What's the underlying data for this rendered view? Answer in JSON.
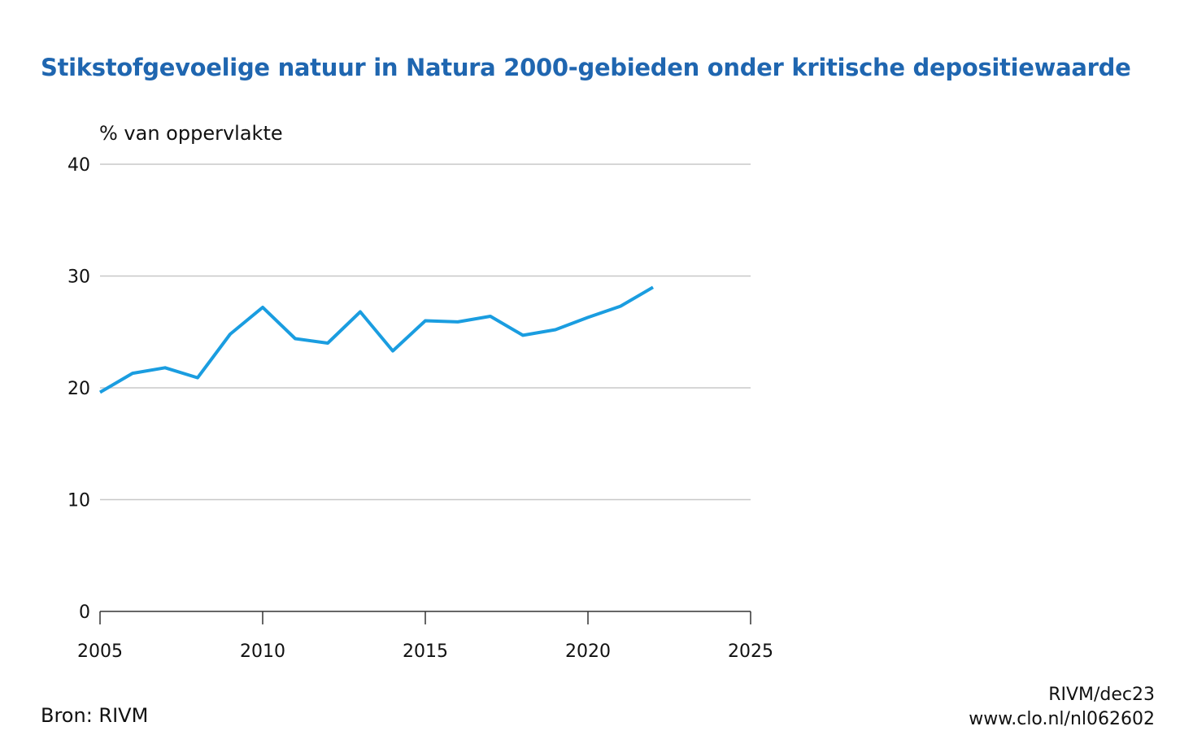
{
  "chart_data": {
    "type": "line",
    "title": "Stikstofgevoelige natuur in Natura 2000-gebieden onder kritische depositiewaarde",
    "ylabel": "% van oppervlakte",
    "xlabel": "",
    "xlim": [
      2005,
      2025
    ],
    "ylim": [
      0,
      40
    ],
    "xticks": [
      "2005",
      "2010",
      "2015",
      "2020",
      "2025"
    ],
    "yticks": [
      "0",
      "10",
      "20",
      "30",
      "40"
    ],
    "grid": "horizontal",
    "legend": "none",
    "series": [
      {
        "color": "#1a9de0",
        "x": [
          2005,
          2006,
          2007,
          2008,
          2009,
          2010,
          2011,
          2012,
          2013,
          2014,
          2015,
          2016,
          2017,
          2018,
          2019,
          2020,
          2021,
          2022
        ],
        "y": [
          19.6,
          21.3,
          21.8,
          20.9,
          24.8,
          27.2,
          24.4,
          24.0,
          26.8,
          23.3,
          26.0,
          25.9,
          26.4,
          24.7,
          25.2,
          26.3,
          27.3,
          29.0
        ]
      }
    ]
  },
  "footer": {
    "source": "Bron: RIVM",
    "credit_line1": "RIVM/dec23",
    "credit_line2": "www.clo.nl/nl062602"
  },
  "colors": {
    "title": "#1f66b0",
    "line": "#1a9de0",
    "grid": "#c8c8c8",
    "axis": "#333333"
  }
}
